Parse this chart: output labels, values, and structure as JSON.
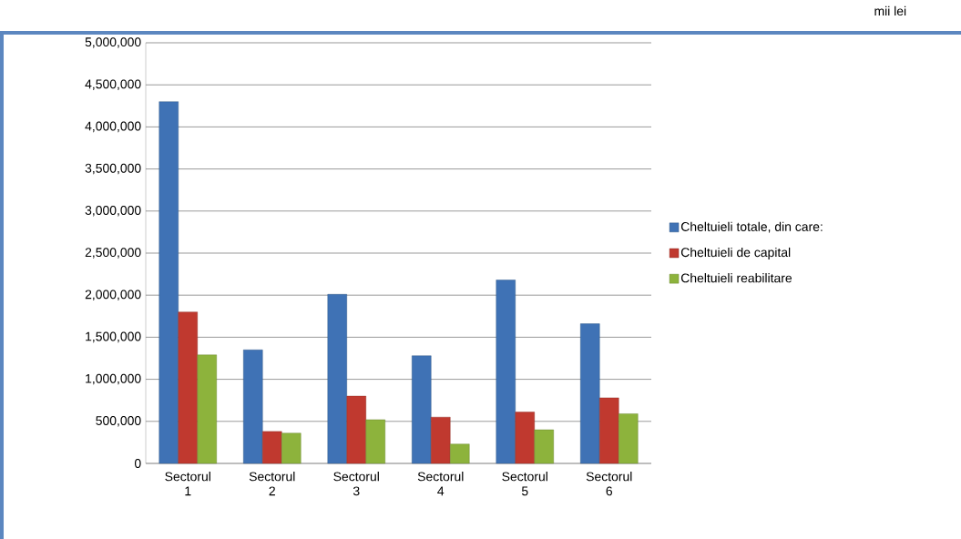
{
  "chart_data": {
    "type": "bar",
    "annotations": [
      "mii lei"
    ],
    "categories": [
      "Sectorul 1",
      "Sectorul 2",
      "Sectorul 3",
      "Sectorul 4",
      "Sectorul 5",
      "Sectorul 6"
    ],
    "series": [
      {
        "name": "Cheltuieli totale, din care:",
        "color": "#3f72b5",
        "values": [
          4300000,
          1350000,
          2010000,
          1280000,
          2180000,
          1660000
        ]
      },
      {
        "name": "Cheltuieli de capital",
        "color": "#c0392f",
        "values": [
          1800000,
          380000,
          800000,
          550000,
          610000,
          780000
        ]
      },
      {
        "name": "Cheltuieli reabilitare",
        "color": "#8db33c",
        "values": [
          1290000,
          360000,
          520000,
          230000,
          400000,
          590000
        ]
      }
    ],
    "ylim": [
      0,
      5000000
    ],
    "yticks": [
      {
        "value": 0,
        "label": "0"
      },
      {
        "value": 500000,
        "label": "500,000"
      },
      {
        "value": 1000000,
        "label": "1,000,000"
      },
      {
        "value": 1500000,
        "label": "1,500,000"
      },
      {
        "value": 2000000,
        "label": "2,000,000"
      },
      {
        "value": 2500000,
        "label": "2,500,000"
      },
      {
        "value": 3000000,
        "label": "3,000,000"
      },
      {
        "value": 3500000,
        "label": "3,500,000"
      },
      {
        "value": 4000000,
        "label": "4,000,000"
      },
      {
        "value": 4500000,
        "label": "4,500,000"
      },
      {
        "value": 5000000,
        "label": "5,000,000"
      }
    ],
    "grid": "y",
    "legend": "right"
  }
}
